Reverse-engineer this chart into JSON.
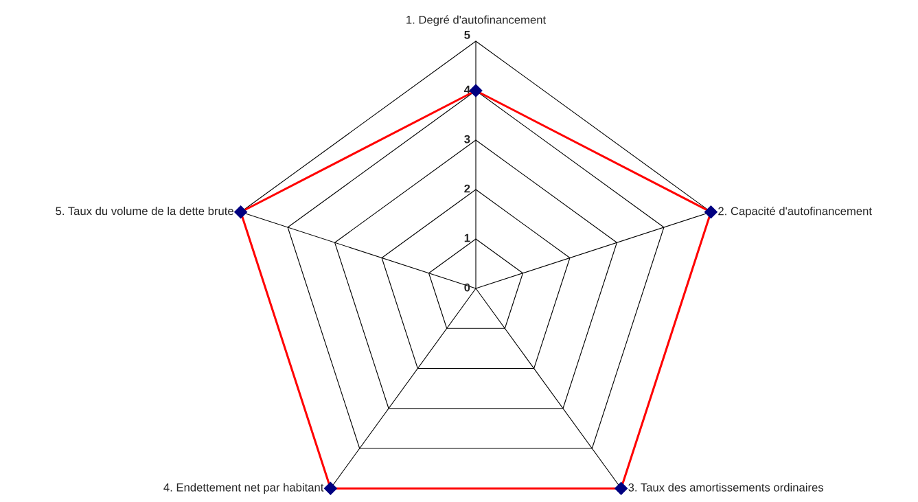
{
  "chart_data": {
    "type": "radar",
    "categories": [
      "1. Degré d'autofinancement",
      "2. Capacité d'autofinancement",
      "3. Taux des amortissements ordinaires",
      "4. Endettement net par habitant",
      "5. Taux du volume de la dette brute"
    ],
    "series": [
      {
        "color": "#ff0000",
        "values": [
          4,
          5,
          5,
          5,
          5
        ]
      }
    ],
    "ylim": [
      0,
      5
    ],
    "yticks": [
      0,
      1,
      2,
      3,
      4,
      5
    ],
    "marker": "diamond",
    "grid": true
  }
}
